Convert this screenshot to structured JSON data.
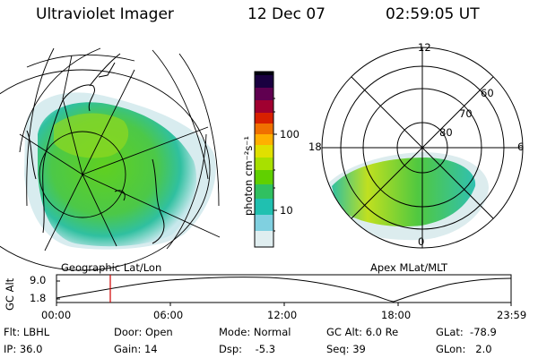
{
  "header": {
    "instrument": "Ultraviolet Imager",
    "date": "12 Dec 07",
    "time": "02:59:05 UT"
  },
  "left_map": {
    "caption": "Geographic Lat/Lon"
  },
  "right_map": {
    "caption": "Apex MLat/MLT",
    "mlt_labels": [
      "12",
      "18",
      "6",
      "0"
    ],
    "lat_labels": [
      "60",
      "70",
      "80"
    ]
  },
  "colorbar": {
    "unit": "photon cm⁻²s⁻¹",
    "ticks": [
      "100",
      "10"
    ],
    "colors": [
      "#0a0020",
      "#3a0040",
      "#7a0050",
      "#c00000",
      "#e85000",
      "#ffb000",
      "#e8e000",
      "#a8e000",
      "#50d000",
      "#20c080",
      "#20c0c0",
      "#a0d8e8",
      "#e8f0f0"
    ]
  },
  "altitude_plot": {
    "ylabel": "GC Alt",
    "yticks": [
      "9.0",
      "1.8"
    ],
    "xticks": [
      "00:00",
      "06:00",
      "12:00",
      "18:00",
      "23:59"
    ]
  },
  "footer": {
    "row1": {
      "flt": "Flt: LBHL",
      "door": "Door: Open",
      "mode": "Mode: Normal",
      "gcalt": "GC Alt: 6.0 Re",
      "glat": "GLat:  -78.9"
    },
    "row2": {
      "ip": "IP: 36.0",
      "gain": "Gain: 14",
      "dsp": "Dsp:    -5.3",
      "seq": "Seq: 39",
      "glon": "GLon:   2.0"
    }
  }
}
